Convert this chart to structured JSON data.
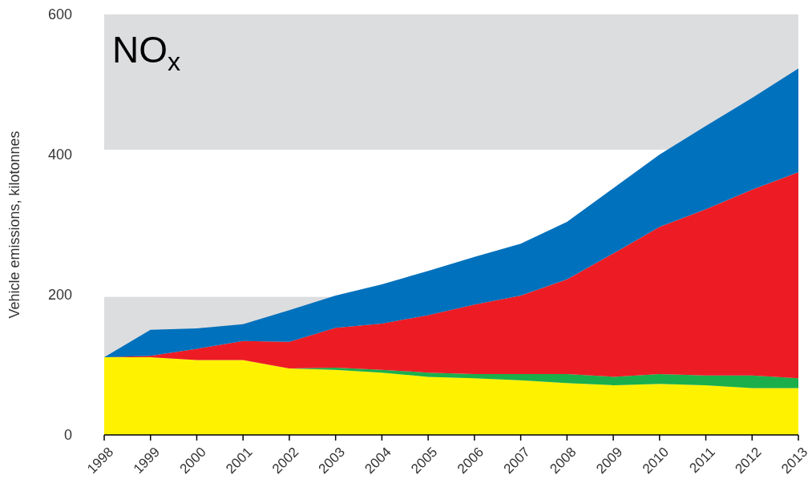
{
  "chart_data": {
    "type": "area",
    "stacked": true,
    "title": "NO$_{x}$",
    "ylabel": "Vehicle emissions, kilotonnes",
    "categories": [
      "1998",
      "1999",
      "2000",
      "2001",
      "2002",
      "2003",
      "2004",
      "2005",
      "2006",
      "2007",
      "2008",
      "2009",
      "2010",
      "2011",
      "2012",
      "2013"
    ],
    "series": [
      {
        "color": "#fff200",
        "values": [
          111,
          111,
          107,
          107,
          95,
          93,
          89,
          83,
          81,
          78,
          74,
          71,
          73,
          71,
          67,
          67
        ]
      },
      {
        "color": "#1aaf4b",
        "values": [
          0,
          0,
          0,
          0,
          0,
          3,
          4,
          6,
          6,
          9,
          13,
          12,
          14,
          14,
          18,
          14
        ]
      },
      {
        "color": "#ed1c24",
        "values": [
          0,
          2,
          16,
          27,
          38,
          57,
          66,
          82,
          99,
          112,
          135,
          176,
          210,
          237,
          265,
          294
        ]
      },
      {
        "color": "#0071bc",
        "values": [
          0,
          37,
          29,
          24,
          45,
          46,
          56,
          63,
          68,
          74,
          82,
          93,
          103,
          119,
          131,
          148
        ]
      }
    ],
    "ylim": [
      0,
      600
    ],
    "yticks": [
      0,
      200,
      400,
      600
    ],
    "bands": [
      {
        "axis": "y",
        "from": 0,
        "to": 197,
        "color": "#dcdddf"
      },
      {
        "axis": "y",
        "from": 407,
        "to": 600,
        "color": "#dcdddf"
      }
    ]
  }
}
